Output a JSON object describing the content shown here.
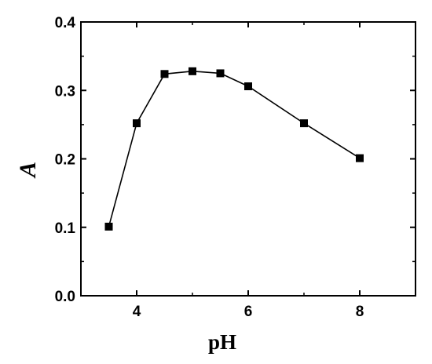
{
  "chart_data": {
    "type": "line",
    "title": "",
    "xlabel": "pH",
    "ylabel": "A",
    "xlim": [
      3,
      9
    ],
    "ylim": [
      0.0,
      0.4
    ],
    "x_ticks": [
      4,
      6,
      8
    ],
    "x_tick_labels": [
      "4",
      "6",
      "8"
    ],
    "y_ticks": [
      0.0,
      0.1,
      0.2,
      0.3,
      0.4
    ],
    "y_tick_labels": [
      "0.0",
      "0.1",
      "0.2",
      "0.3",
      "0.4"
    ],
    "grid": false,
    "legend": "none",
    "series": [
      {
        "marker": "square",
        "color": "#000000",
        "x": [
          3.5,
          4.0,
          4.5,
          5.0,
          5.5,
          6.0,
          7.0,
          8.0
        ],
        "y": [
          0.101,
          0.252,
          0.324,
          0.328,
          0.325,
          0.306,
          0.252,
          0.201
        ]
      }
    ]
  }
}
